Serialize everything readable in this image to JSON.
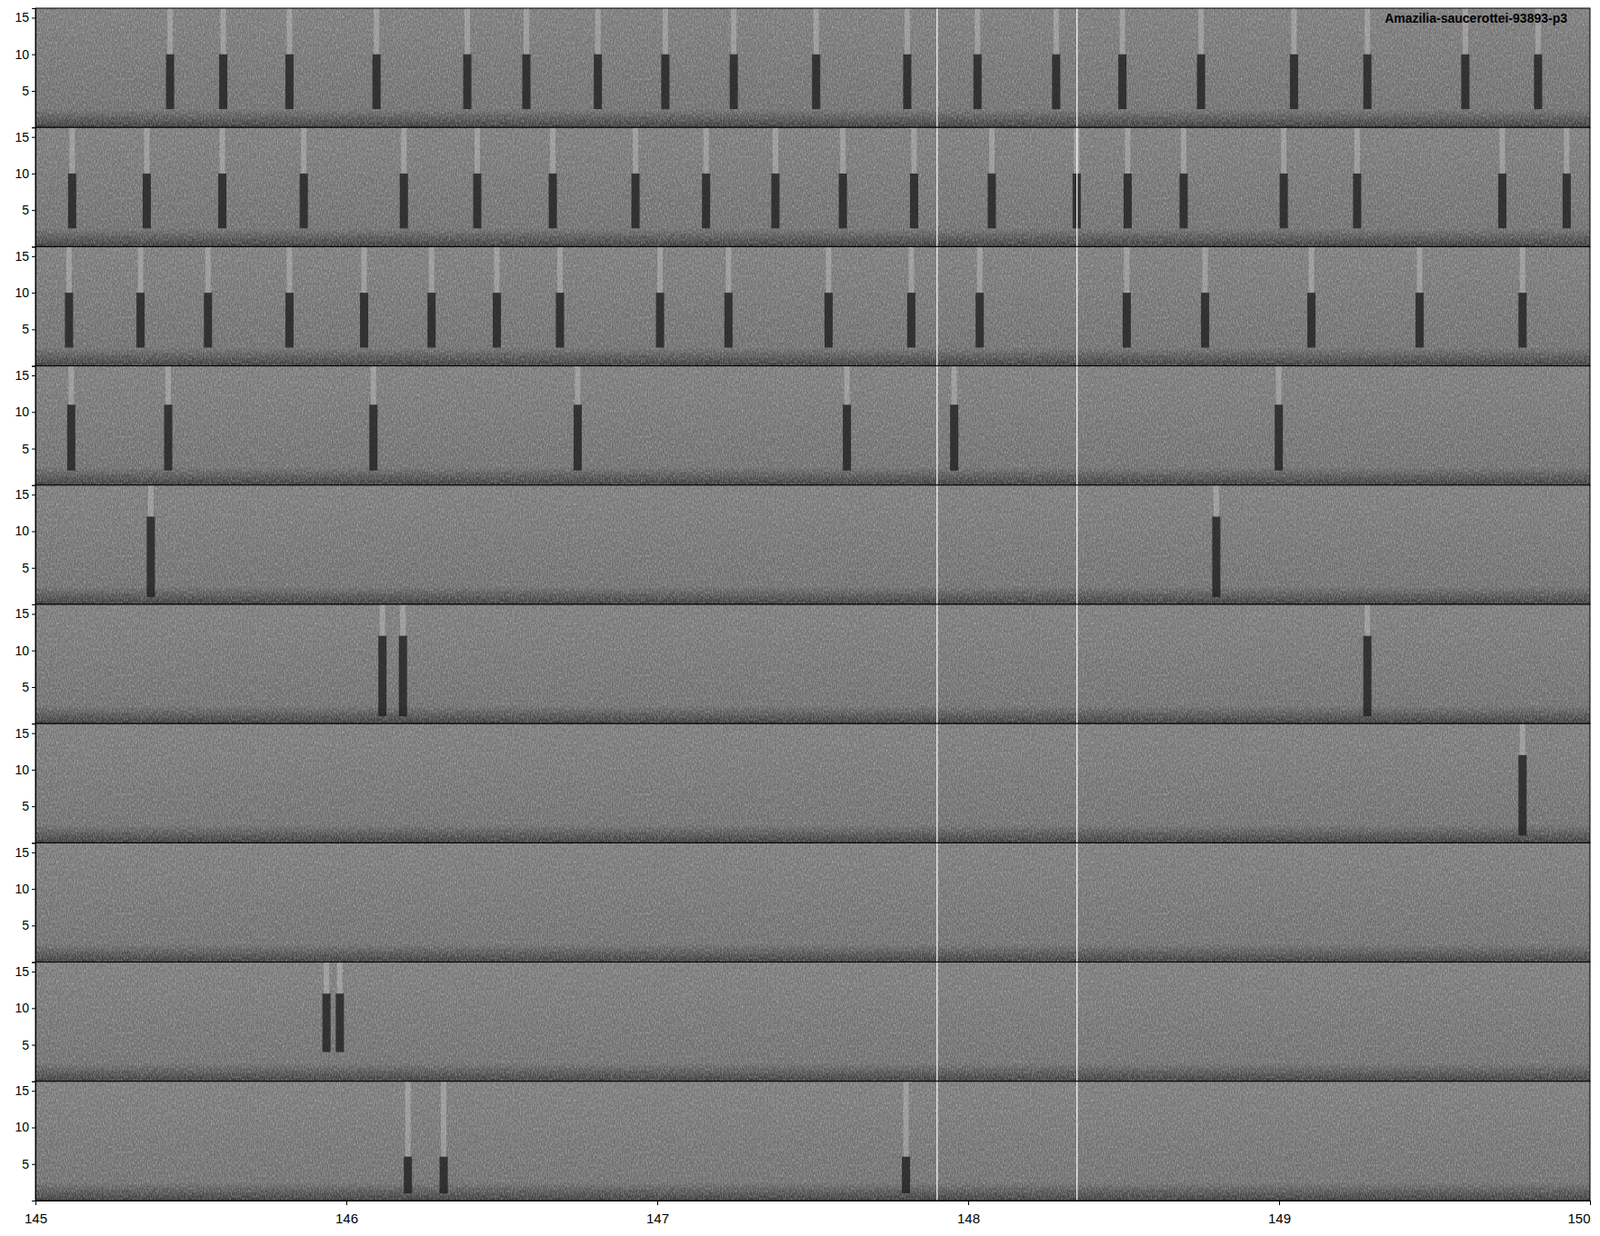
{
  "chart_data": {
    "type": "spectrogram",
    "title": "Amazilia-saucerottei-93893-p3",
    "xlim": [
      145,
      150
    ],
    "xticks": [
      145,
      146,
      147,
      148,
      149,
      150
    ],
    "ylim": [
      0,
      16.3
    ],
    "yticks": [
      5,
      10,
      15
    ],
    "markers": [
      147.9,
      148.35
    ],
    "rows": [
      {
        "x": [
          145.433,
          145.604,
          145.817,
          146.097,
          146.389,
          146.579,
          146.809,
          147.026,
          147.246,
          147.511,
          147.804,
          148.03,
          148.283,
          148.496,
          148.749,
          149.048,
          149.284,
          149.599,
          149.833
        ],
        "ylow": 2.5,
        "yhigh": 10
      },
      {
        "x": [
          145.118,
          145.358,
          145.601,
          145.863,
          146.185,
          146.421,
          146.664,
          146.93,
          147.157,
          147.38,
          147.597,
          147.826,
          148.076,
          148.349,
          148.513,
          148.693,
          149.015,
          149.251,
          149.718,
          149.925
        ],
        "ylow": 2.5,
        "yhigh": 10
      },
      {
        "x": [
          145.108,
          145.338,
          145.555,
          145.817,
          146.057,
          146.274,
          146.484,
          146.687,
          147.009,
          147.229,
          147.551,
          147.817,
          148.037,
          148.51,
          148.762,
          149.104,
          149.452,
          149.783
        ],
        "ylow": 2.5,
        "yhigh": 10
      },
      {
        "x": [
          145.115,
          145.427,
          146.087,
          146.744,
          147.61,
          147.955,
          148.999
        ],
        "ylow": 2,
        "yhigh": 11
      },
      {
        "x": [
          145.371,
          148.798
        ],
        "ylow": 1,
        "yhigh": 12
      },
      {
        "x": [
          146.116,
          146.182,
          149.284
        ],
        "ylow": 1,
        "yhigh": 12
      },
      {
        "x": [
          149.783
        ],
        "ylow": 1,
        "yhigh": 12
      },
      {
        "x": [],
        "ylow": 1,
        "yhigh": 12
      },
      {
        "x": [
          145.936,
          145.979
        ],
        "ylow": 4,
        "yhigh": 12
      },
      {
        "x": [
          146.198,
          146.313,
          147.8
        ],
        "ylow": 1,
        "yhigh": 6
      }
    ]
  }
}
